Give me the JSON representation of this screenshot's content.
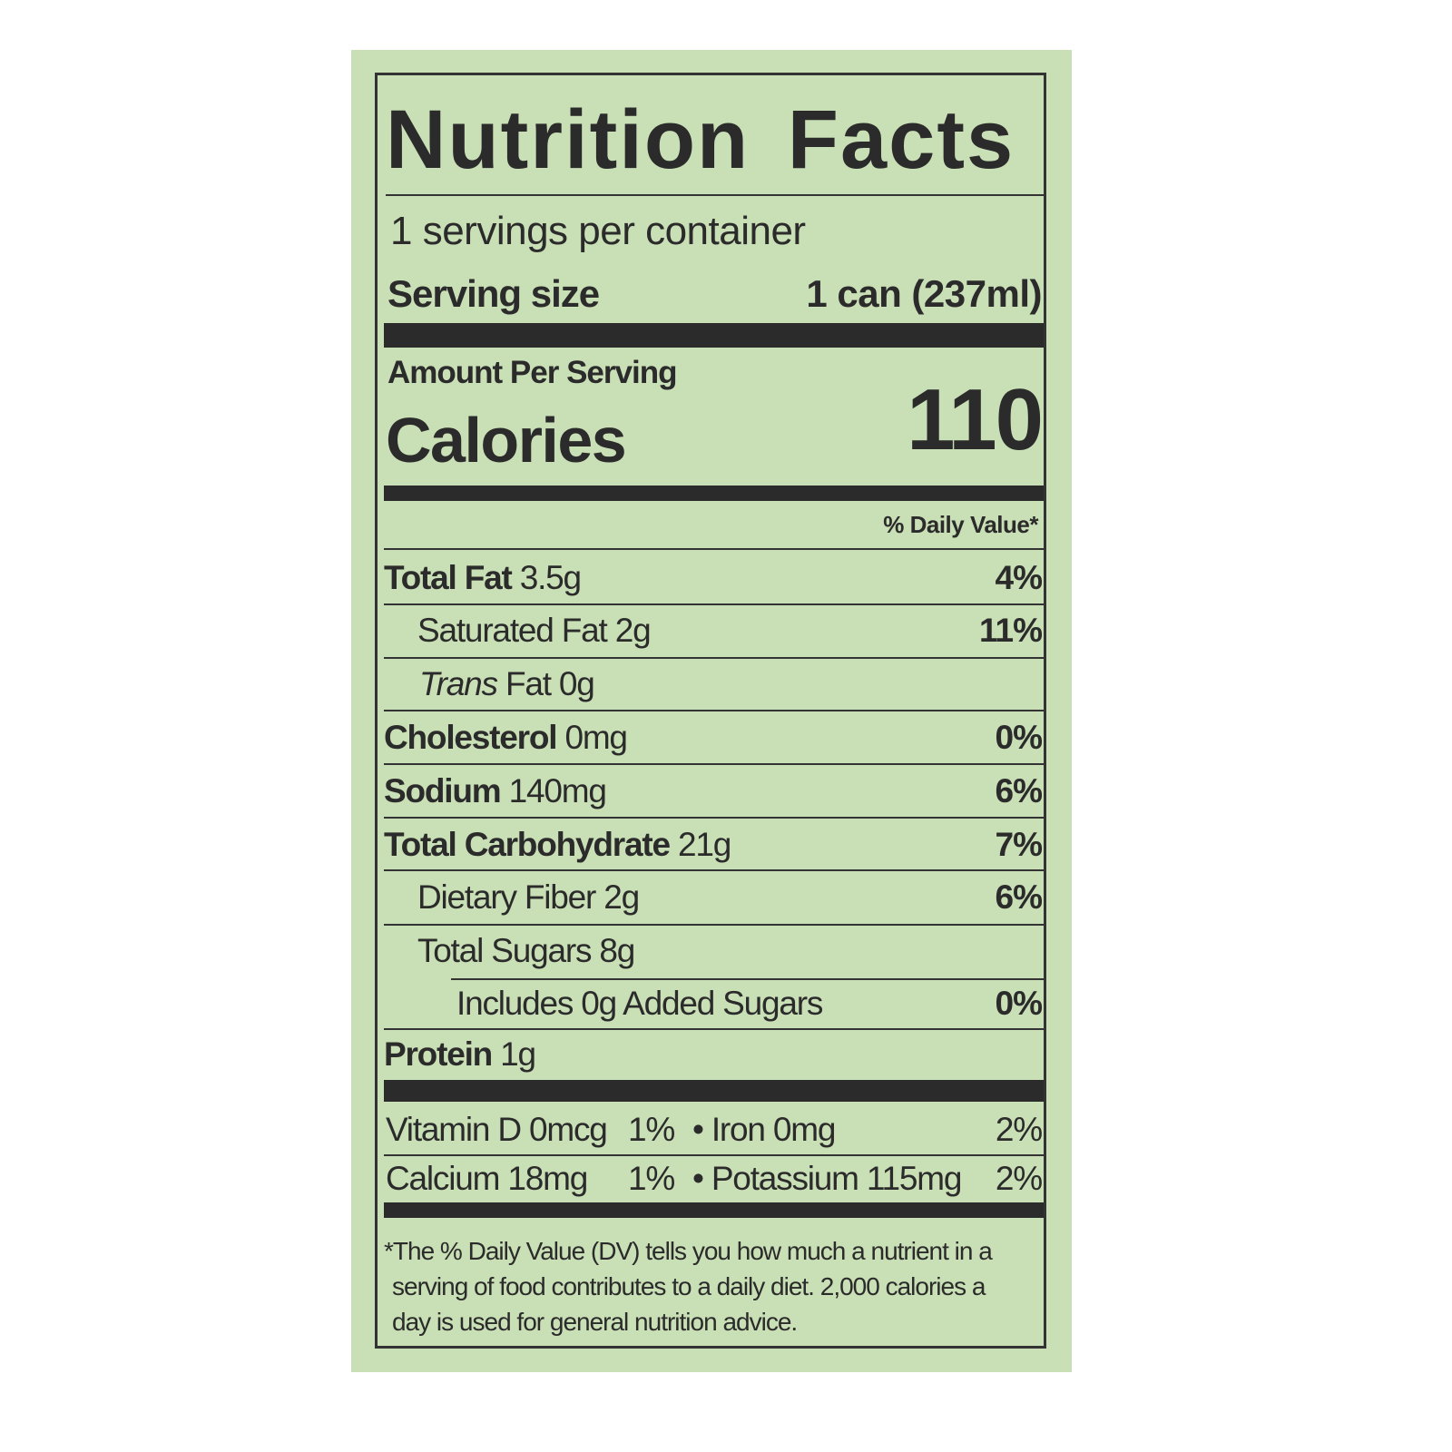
{
  "title": "Nutrition Facts",
  "servings_per_container": "1 servings per container",
  "serving_size": {
    "label": "Serving size",
    "value": "1 can (237ml)"
  },
  "amount_per_serving": "Amount Per Serving",
  "calories": {
    "label": "Calories",
    "value": "110"
  },
  "daily_value_header": "% Daily Value*",
  "nutrients": [
    {
      "name": "Total Fat",
      "amount": "3.5g",
      "dv": "4%"
    },
    {
      "name": "Saturated Fat",
      "amount": "2g",
      "dv": "11%"
    },
    {
      "name": "Trans",
      "name2": "Fat",
      "amount": "0g",
      "dv": ""
    },
    {
      "name": "Cholesterol",
      "amount": "0mg",
      "dv": "0%"
    },
    {
      "name": "Sodium",
      "amount": "140mg",
      "dv": "6%"
    },
    {
      "name": "Total Carbohydrate",
      "amount": "21g",
      "dv": "7%"
    },
    {
      "name": "Dietary Fiber",
      "amount": "2g",
      "dv": "6%"
    },
    {
      "name": "Total Sugars",
      "amount": "8g",
      "dv": ""
    },
    {
      "name": "Includes 0g Added Sugars",
      "amount": "",
      "dv": "0%"
    },
    {
      "name": "Protein",
      "amount": "1g",
      "dv": ""
    }
  ],
  "micros": [
    {
      "left": "Vitamin D 0mcg",
      "left_dv": "1%",
      "right": "• Iron 0mg",
      "right_dv": "2%"
    },
    {
      "left": "Calcium 18mg",
      "left_dv": "1%",
      "right": "• Potassium 115mg",
      "right_dv": "2%"
    }
  ],
  "footnote": [
    "*The % Daily Value (DV) tells you how much a nutrient in a",
    "serving of food contributes to a daily diet. 2,000 calories a",
    "day is used for general nutrition advice."
  ],
  "colors": {
    "label_bg": "#c9dfb5",
    "ink": "#2b2b2b"
  }
}
